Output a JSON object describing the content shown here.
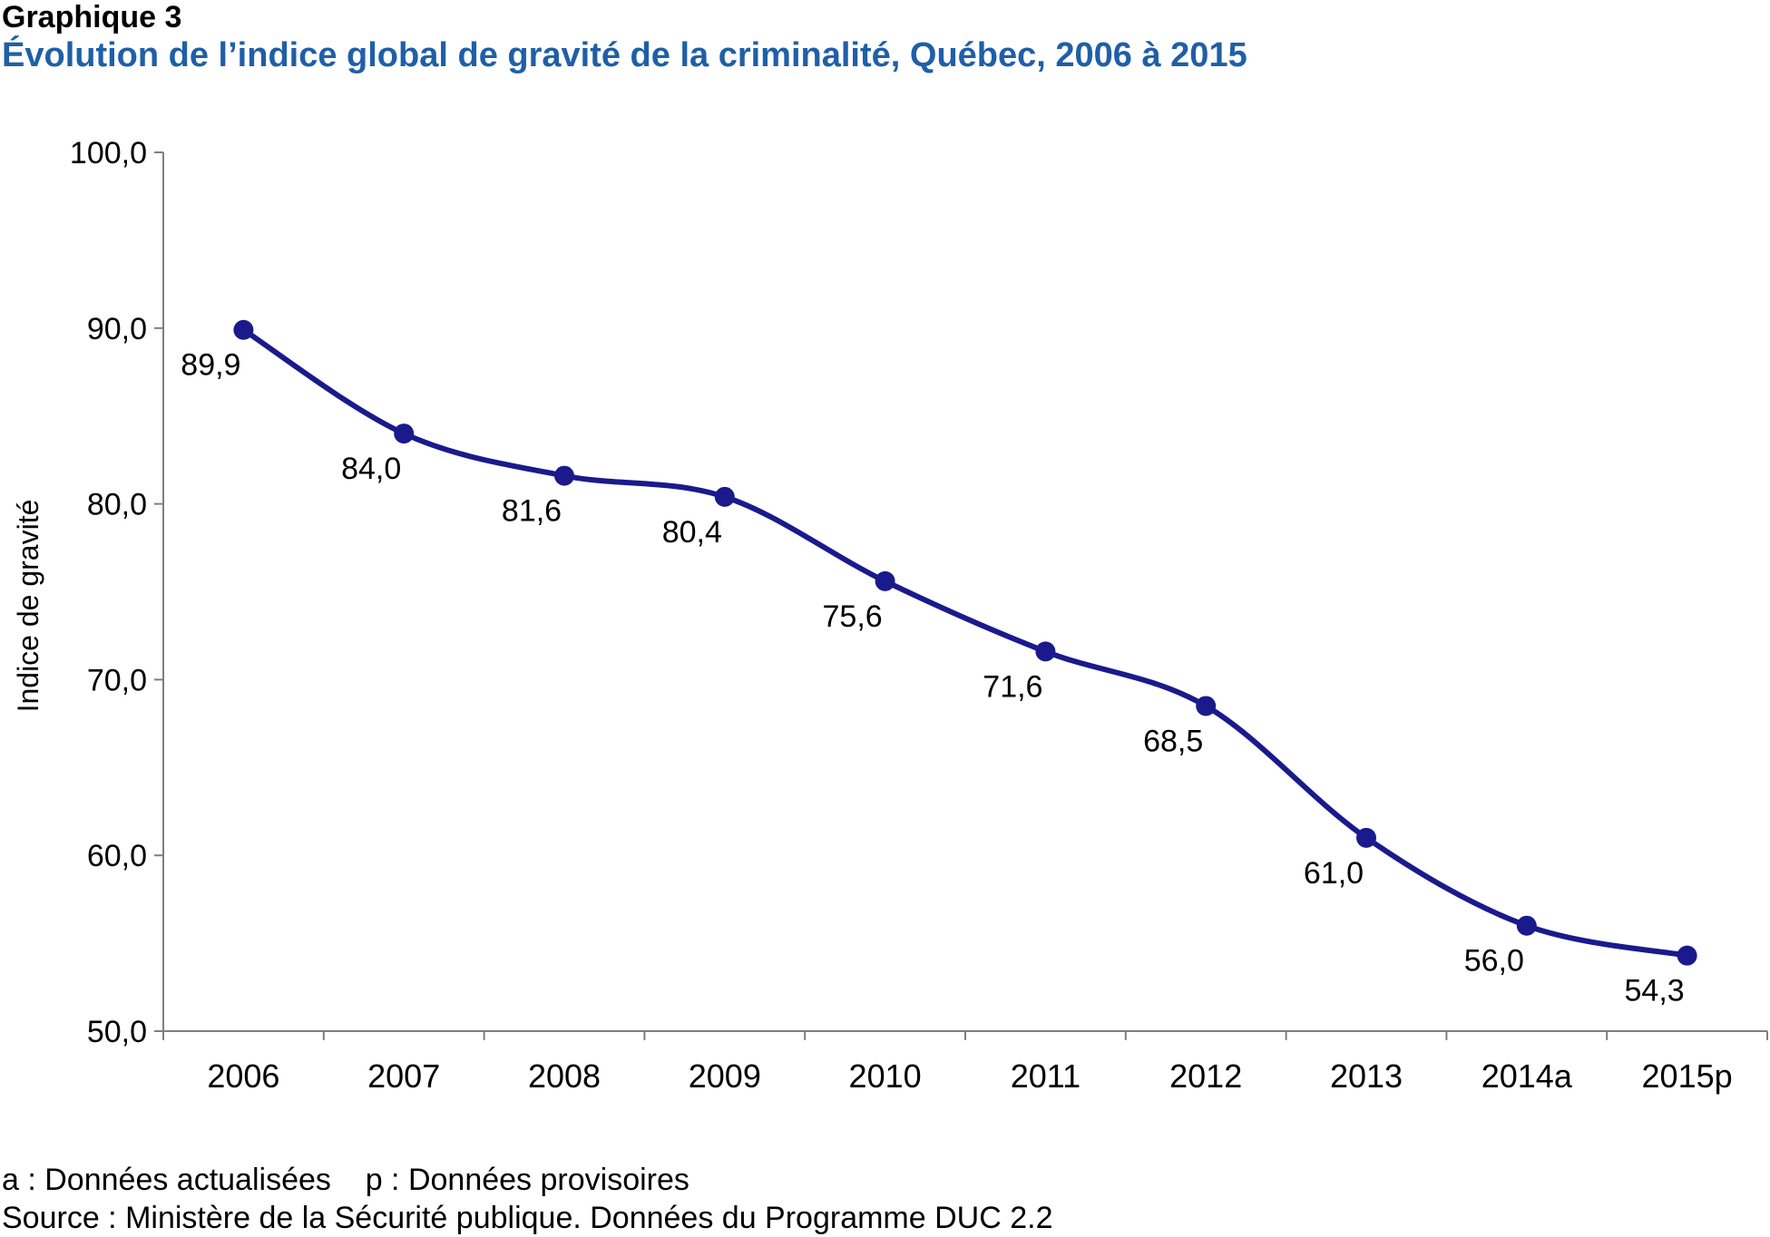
{
  "figure": {
    "label": "Graphique 3",
    "title": "Évolution de l’indice global de gravité de la criminalité, Québec, 2006 à 2015"
  },
  "chart_data": {
    "type": "line",
    "categories": [
      "2006",
      "2007",
      "2008",
      "2009",
      "2010",
      "2011",
      "2012",
      "2013",
      "2014a",
      "2015p"
    ],
    "series": [
      {
        "values": [
          89.9,
          84.0,
          81.6,
          80.4,
          75.6,
          71.6,
          68.5,
          61.0,
          56.0,
          54.3
        ],
        "data_labels": [
          "89,9",
          "84,0",
          "81,6",
          "80,4",
          "75,6",
          "71,6",
          "68,5",
          "61,0",
          "56,0",
          "54,3"
        ],
        "color": "#1a1a8c"
      }
    ],
    "xlabel": "",
    "ylabel": "Indice de gravité",
    "ylim": [
      50,
      100
    ],
    "yticks": [
      50,
      60,
      70,
      80,
      90,
      100
    ],
    "ytick_labels": [
      "50,0",
      "60,0",
      "70,0",
      "80,0",
      "90,0",
      "100,0"
    ],
    "grid": false,
    "legend": "none",
    "smooth": true
  },
  "notes": {
    "abbrev_a": "a : Données actualisées",
    "abbrev_p": "p : Données provisoires",
    "source": "Source : Ministère de la Sécurité publique. Données du Programme DUC 2.2"
  }
}
